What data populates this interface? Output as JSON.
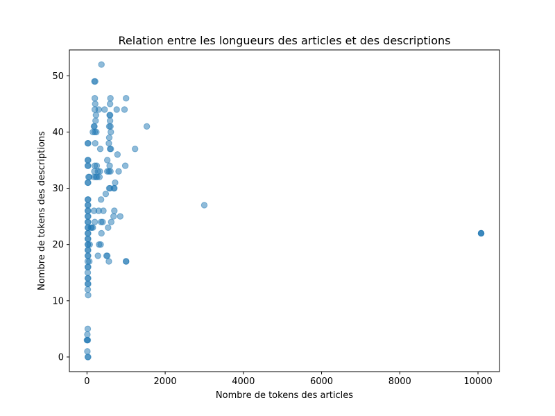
{
  "chart_data": {
    "type": "scatter",
    "title": "Relation entre les longueurs des articles et des descriptions",
    "xlabel": "Nombre de tokens des articles",
    "ylabel": "Nombre de tokens des descriptions",
    "xlim": [
      -450,
      10550
    ],
    "ylim": [
      -2.6,
      54.6
    ],
    "xticks": [
      0,
      2000,
      4000,
      6000,
      8000,
      10000
    ],
    "yticks": [
      0,
      10,
      20,
      30,
      40,
      50
    ],
    "grid": false,
    "marker_color": "#1f77b4",
    "marker_alpha": 0.5,
    "points": [
      [
        10080,
        22
      ],
      [
        10080,
        22
      ],
      [
        10080,
        22
      ],
      [
        3000,
        27
      ],
      [
        1530,
        41
      ],
      [
        1230,
        37
      ],
      [
        1000,
        46
      ],
      [
        960,
        44
      ],
      [
        980,
        34
      ],
      [
        1000,
        17
      ],
      [
        1000,
        17
      ],
      [
        760,
        44
      ],
      [
        780,
        36
      ],
      [
        810,
        33
      ],
      [
        850,
        25
      ],
      [
        690,
        30
      ],
      [
        700,
        30
      ],
      [
        720,
        31
      ],
      [
        700,
        26
      ],
      [
        680,
        25
      ],
      [
        600,
        46
      ],
      [
        590,
        45
      ],
      [
        590,
        43
      ],
      [
        580,
        43
      ],
      [
        590,
        42
      ],
      [
        600,
        41
      ],
      [
        570,
        41
      ],
      [
        610,
        40
      ],
      [
        570,
        39
      ],
      [
        560,
        38
      ],
      [
        610,
        37
      ],
      [
        590,
        37
      ],
      [
        580,
        34
      ],
      [
        560,
        33
      ],
      [
        600,
        33
      ],
      [
        590,
        30
      ],
      [
        570,
        30
      ],
      [
        620,
        24
      ],
      [
        540,
        23
      ],
      [
        560,
        17
      ],
      [
        520,
        18
      ],
      [
        500,
        18
      ],
      [
        520,
        35
      ],
      [
        480,
        29
      ],
      [
        520,
        33
      ],
      [
        370,
        52
      ],
      [
        450,
        44
      ],
      [
        300,
        44
      ],
      [
        340,
        37
      ],
      [
        330,
        33
      ],
      [
        280,
        33
      ],
      [
        320,
        32
      ],
      [
        230,
        32
      ],
      [
        250,
        34
      ],
      [
        400,
        24
      ],
      [
        360,
        24
      ],
      [
        420,
        26
      ],
      [
        360,
        28
      ],
      [
        350,
        20
      ],
      [
        310,
        20
      ],
      [
        370,
        22
      ],
      [
        280,
        18
      ],
      [
        300,
        26
      ],
      [
        210,
        49
      ],
      [
        190,
        49
      ],
      [
        200,
        46
      ],
      [
        210,
        45
      ],
      [
        200,
        44
      ],
      [
        230,
        43
      ],
      [
        220,
        42
      ],
      [
        240,
        40
      ],
      [
        200,
        40
      ],
      [
        190,
        41
      ],
      [
        180,
        41
      ],
      [
        150,
        40
      ],
      [
        210,
        38
      ],
      [
        260,
        32
      ],
      [
        190,
        33
      ],
      [
        180,
        32
      ],
      [
        200,
        34
      ],
      [
        180,
        26
      ],
      [
        150,
        23
      ],
      [
        120,
        23
      ],
      [
        200,
        24
      ],
      [
        100,
        23
      ],
      [
        30,
        38
      ],
      [
        20,
        38
      ],
      [
        30,
        35
      ],
      [
        20,
        35
      ],
      [
        30,
        34
      ],
      [
        20,
        34
      ],
      [
        60,
        32
      ],
      [
        40,
        32
      ],
      [
        20,
        31
      ],
      [
        30,
        31
      ],
      [
        20,
        28
      ],
      [
        30,
        28
      ],
      [
        20,
        27
      ],
      [
        30,
        27
      ],
      [
        20,
        26
      ],
      [
        30,
        26
      ],
      [
        20,
        25
      ],
      [
        30,
        25
      ],
      [
        20,
        24
      ],
      [
        30,
        24
      ],
      [
        20,
        23
      ],
      [
        30,
        23
      ],
      [
        20,
        22
      ],
      [
        30,
        22
      ],
      [
        20,
        21
      ],
      [
        30,
        21
      ],
      [
        20,
        20
      ],
      [
        30,
        20
      ],
      [
        70,
        20
      ],
      [
        20,
        19
      ],
      [
        30,
        19
      ],
      [
        20,
        18
      ],
      [
        30,
        18
      ],
      [
        20,
        17
      ],
      [
        60,
        17
      ],
      [
        20,
        16
      ],
      [
        30,
        16
      ],
      [
        20,
        15
      ],
      [
        20,
        14
      ],
      [
        30,
        14
      ],
      [
        20,
        13
      ],
      [
        30,
        13
      ],
      [
        20,
        12
      ],
      [
        30,
        11
      ],
      [
        20,
        5
      ],
      [
        10,
        4
      ],
      [
        0,
        3
      ],
      [
        10,
        3
      ],
      [
        20,
        3
      ],
      [
        10,
        1
      ],
      [
        20,
        0
      ],
      [
        30,
        0
      ]
    ]
  }
}
